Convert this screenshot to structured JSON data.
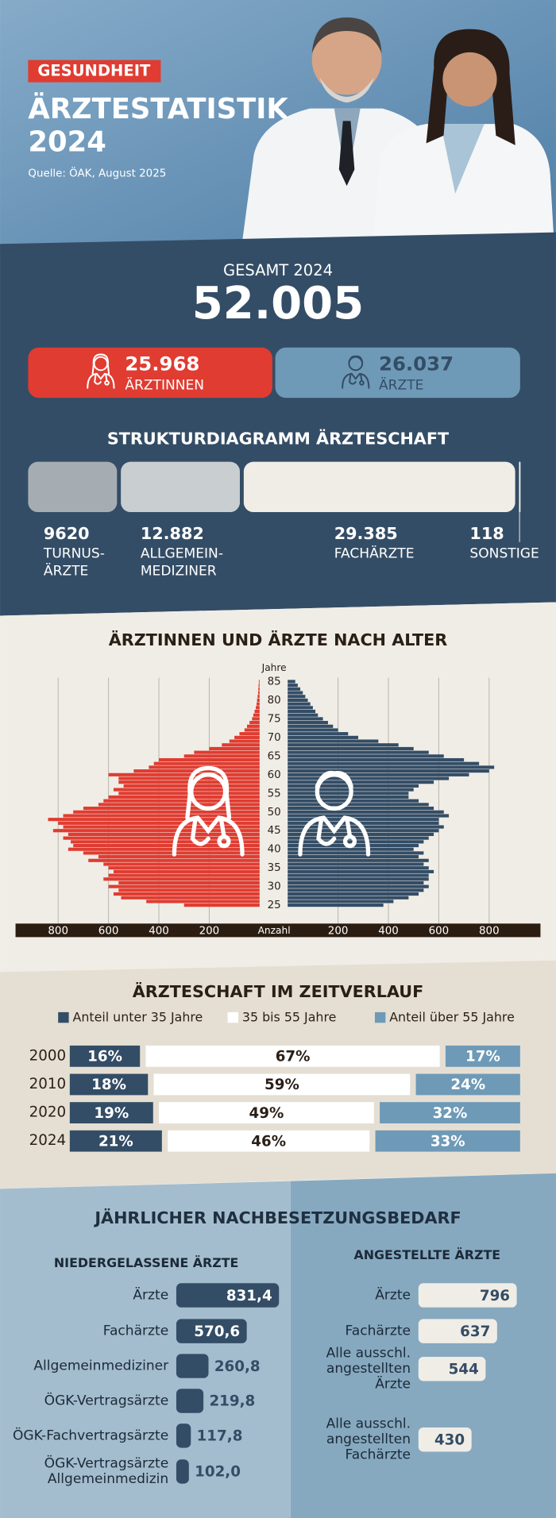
{
  "header": {
    "tag": "GESUNDHEIT",
    "title": "ÄRZTESTATISTIK\n2024",
    "source": "Quelle: ÖAK, August 2025"
  },
  "total": {
    "label": "GESAMT 2024",
    "value": 52005,
    "value_label": "52.005"
  },
  "chart_data": [
    {
      "type": "split-bar",
      "categories": [
        "ÄRZTINNEN",
        "ÄRZTE"
      ],
      "values": [
        25968,
        26037
      ],
      "value_labels": [
        "25.968",
        "26.037"
      ],
      "colors": [
        "#e03c31",
        "#6e9ab8"
      ]
    },
    {
      "type": "strip",
      "title": "STRUKTURDIAGRAMM ÄRZTESCHAFT",
      "categories": [
        "TURNUS-\nÄRZTE",
        "ALLGEMEIN-\nMEDIZINER",
        "FACHÄRZTE",
        "SONSTIGE"
      ],
      "values": [
        9620,
        12882,
        29385,
        118
      ],
      "value_labels": [
        "9620",
        "12.882",
        "29.385",
        "118"
      ],
      "colors": [
        "#a6adb2",
        "#c9cfd1",
        "#f0ede6",
        "#f7f5f0"
      ]
    },
    {
      "type": "pyramid",
      "title": "ÄRZTINNEN UND ÄRZTE NACH ALTER",
      "ylabel": "Jahre",
      "xlabel": "Anzahl",
      "categories": [
        25,
        26,
        27,
        28,
        29,
        30,
        31,
        32,
        33,
        34,
        35,
        36,
        37,
        38,
        39,
        40,
        41,
        42,
        43,
        44,
        45,
        46,
        47,
        48,
        49,
        50,
        51,
        52,
        53,
        54,
        55,
        56,
        57,
        58,
        59,
        60,
        61,
        62,
        63,
        64,
        65,
        66,
        67,
        68,
        69,
        70,
        71,
        72,
        73,
        74,
        75,
        76,
        77,
        78,
        79,
        80,
        81,
        82,
        83,
        84,
        85
      ],
      "yticks": [
        25,
        30,
        35,
        40,
        45,
        50,
        55,
        60,
        65,
        70,
        75,
        80,
        85
      ],
      "xlim": [
        0,
        900
      ],
      "xticks": [
        200,
        400,
        600,
        800
      ],
      "grid": true,
      "series": [
        {
          "color": "#e03c31",
          "values": [
            300,
            450,
            550,
            580,
            560,
            600,
            560,
            620,
            600,
            580,
            600,
            620,
            680,
            640,
            700,
            760,
            740,
            750,
            780,
            760,
            820,
            780,
            800,
            840,
            780,
            740,
            700,
            640,
            620,
            600,
            560,
            580,
            540,
            560,
            560,
            600,
            500,
            440,
            420,
            400,
            300,
            260,
            200,
            150,
            120,
            100,
            80,
            60,
            50,
            40,
            30,
            25,
            20,
            15,
            12,
            10,
            8,
            6,
            5,
            4,
            3
          ]
        },
        {
          "color": "#344d66",
          "values": [
            380,
            420,
            480,
            520,
            540,
            560,
            540,
            560,
            560,
            580,
            560,
            540,
            560,
            520,
            540,
            500,
            520,
            540,
            560,
            580,
            600,
            620,
            600,
            600,
            640,
            620,
            580,
            560,
            520,
            480,
            480,
            500,
            520,
            580,
            640,
            720,
            800,
            820,
            760,
            700,
            620,
            560,
            500,
            440,
            360,
            280,
            240,
            200,
            180,
            160,
            140,
            120,
            110,
            100,
            90,
            80,
            70,
            60,
            50,
            40,
            30
          ]
        }
      ]
    },
    {
      "type": "stacked-bar",
      "title": "ÄRZTESCHAFT IM ZEITVERLAUF",
      "categories": [
        "2000",
        "2010",
        "2020",
        "2024"
      ],
      "series": [
        {
          "name": "Anteil unter 35 Jahre",
          "color": "#344d66",
          "values": [
            16,
            18,
            19,
            21
          ],
          "value_labels": [
            "16%",
            "18%",
            "19%",
            "21%"
          ]
        },
        {
          "name": "35 bis 55 Jahre",
          "color": "#ffffff",
          "values": [
            67,
            59,
            49,
            46
          ],
          "value_labels": [
            "67%",
            "59%",
            "49%",
            "46%"
          ]
        },
        {
          "name": "Anteil über 55 Jahre",
          "color": "#6e9ab8",
          "values": [
            17,
            24,
            32,
            33
          ],
          "value_labels": [
            "17%",
            "24%",
            "32%",
            "33%"
          ]
        }
      ]
    },
    {
      "type": "hbar",
      "title": "JÄHRLICHER NACHBESETZUNGSBEDARF",
      "subtitle": "NIEDERGELASSENE ÄRZTE",
      "color": "#344d66",
      "categories": [
        "Ärzte",
        "Fachärzte",
        "Allgemeinmediziner",
        "ÖGK-Vertragsärzte",
        "ÖGK-Fachvertragsärzte",
        "ÖGK-Vertragsärzte\nAllgemeinmedizin"
      ],
      "values": [
        831.4,
        570.6,
        260.8,
        219.8,
        117.8,
        102
      ],
      "value_labels": [
        "831,4",
        "570,6",
        "260,8",
        "219,8",
        "117,8",
        "102,0"
      ]
    },
    {
      "type": "hbar",
      "subtitle": "ANGESTELLTE ÄRZTE",
      "color": "#f0ede6",
      "categories": [
        "Ärzte",
        "Fachärzte",
        "Alle ausschl.\nangestellten\nÄrzte",
        "Alle ausschl.\nangestellten\nFachärzte"
      ],
      "values": [
        796,
        637,
        544,
        430
      ]
    }
  ]
}
